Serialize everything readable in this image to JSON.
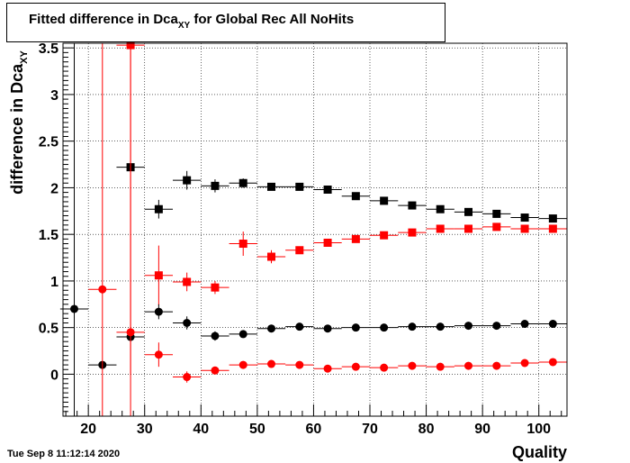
{
  "header": {
    "title_prefix": "Fitted difference in Dca",
    "title_sub": "XY",
    "title_suffix": " for Global Rec All NoHits"
  },
  "footer": {
    "timestamp": "Tue Sep  8 11:12:14 2020"
  },
  "chart_data": {
    "type": "scatter",
    "title": "Fitted difference in Dca_XY for Global Rec All NoHits",
    "xlabel": "Quality",
    "ylabel_main": "difference in Dca",
    "ylabel_sub": "XY",
    "xlim": [
      15.5,
      105
    ],
    "ylim": [
      -0.45,
      3.55
    ],
    "x_ticks": [
      20,
      30,
      40,
      50,
      60,
      70,
      80,
      90,
      100
    ],
    "y_ticks": [
      0,
      0.5,
      1,
      1.5,
      2,
      2.5,
      3,
      3.5
    ],
    "x_tick_labels": [
      "20",
      "30",
      "40",
      "50",
      "60",
      "70",
      "80",
      "90",
      "100"
    ],
    "y_tick_labels": [
      "0",
      "0.5",
      "1",
      "1.5",
      "2",
      "2.5",
      "3",
      "3.5"
    ],
    "grid": true,
    "x_half_width": 2.5,
    "series": [
      {
        "marker": "square",
        "color": "#000000",
        "points": [
          {
            "x": 27.5,
            "y": 2.22,
            "err": 0.04
          },
          {
            "x": 32.5,
            "y": 1.77,
            "err": 0.1
          },
          {
            "x": 37.5,
            "y": 2.08,
            "err": 0.1
          },
          {
            "x": 42.5,
            "y": 2.02,
            "err": 0.07
          },
          {
            "x": 47.5,
            "y": 2.05,
            "err": 0.05
          },
          {
            "x": 52.5,
            "y": 2.01,
            "err": 0.03
          },
          {
            "x": 57.5,
            "y": 2.01,
            "err": 0.03
          },
          {
            "x": 62.5,
            "y": 1.98,
            "err": 0.03
          },
          {
            "x": 67.5,
            "y": 1.91,
            "err": 0.03
          },
          {
            "x": 72.5,
            "y": 1.86,
            "err": 0.02
          },
          {
            "x": 77.5,
            "y": 1.81,
            "err": 0.02
          },
          {
            "x": 82.5,
            "y": 1.77,
            "err": 0.02
          },
          {
            "x": 87.5,
            "y": 1.74,
            "err": 0.02
          },
          {
            "x": 92.5,
            "y": 1.72,
            "err": 0.02
          },
          {
            "x": 97.5,
            "y": 1.68,
            "err": 0.02
          },
          {
            "x": 102.5,
            "y": 1.67,
            "err": 0.02
          }
        ]
      },
      {
        "marker": "square",
        "color": "#ff0000",
        "points": [
          {
            "x": 27.5,
            "y": 3.53,
            "err": 3.53
          },
          {
            "x": 32.5,
            "y": 1.06,
            "err": 0.32
          },
          {
            "x": 37.5,
            "y": 0.99,
            "err": 0.1
          },
          {
            "x": 42.5,
            "y": 0.93,
            "err": 0.07
          },
          {
            "x": 47.5,
            "y": 1.4,
            "err": 0.13
          },
          {
            "x": 52.5,
            "y": 1.26,
            "err": 0.07
          },
          {
            "x": 57.5,
            "y": 1.33,
            "err": 0.04
          },
          {
            "x": 62.5,
            "y": 1.41,
            "err": 0.03
          },
          {
            "x": 67.5,
            "y": 1.45,
            "err": 0.03
          },
          {
            "x": 72.5,
            "y": 1.49,
            "err": 0.02
          },
          {
            "x": 77.5,
            "y": 1.52,
            "err": 0.02
          },
          {
            "x": 82.5,
            "y": 1.56,
            "err": 0.02
          },
          {
            "x": 87.5,
            "y": 1.56,
            "err": 0.02
          },
          {
            "x": 92.5,
            "y": 1.58,
            "err": 0.02
          },
          {
            "x": 97.5,
            "y": 1.56,
            "err": 0.02
          },
          {
            "x": 102.5,
            "y": 1.56,
            "err": 0.02
          }
        ]
      },
      {
        "marker": "circle",
        "color": "#000000",
        "points": [
          {
            "x": 17.5,
            "y": 0.7,
            "err": 3.6
          },
          {
            "x": 22.5,
            "y": 0.1,
            "err": 0.02
          },
          {
            "x": 27.5,
            "y": 0.4,
            "err": 0.03
          },
          {
            "x": 32.5,
            "y": 0.67,
            "err": 0.08
          },
          {
            "x": 37.5,
            "y": 0.55,
            "err": 0.07
          },
          {
            "x": 42.5,
            "y": 0.41,
            "err": 0.05
          },
          {
            "x": 47.5,
            "y": 0.43,
            "err": 0.03
          },
          {
            "x": 52.5,
            "y": 0.49,
            "err": 0.02
          },
          {
            "x": 57.5,
            "y": 0.51,
            "err": 0.02
          },
          {
            "x": 62.5,
            "y": 0.49,
            "err": 0.02
          },
          {
            "x": 67.5,
            "y": 0.5,
            "err": 0.02
          },
          {
            "x": 72.5,
            "y": 0.5,
            "err": 0.02
          },
          {
            "x": 77.5,
            "y": 0.51,
            "err": 0.02
          },
          {
            "x": 82.5,
            "y": 0.51,
            "err": 0.02
          },
          {
            "x": 87.5,
            "y": 0.52,
            "err": 0.02
          },
          {
            "x": 92.5,
            "y": 0.52,
            "err": 0.02
          },
          {
            "x": 97.5,
            "y": 0.54,
            "err": 0.02
          },
          {
            "x": 102.5,
            "y": 0.54,
            "err": 0.02
          }
        ]
      },
      {
        "marker": "circle",
        "color": "#ff0000",
        "points": [
          {
            "x": 22.5,
            "y": 0.91,
            "err": 3.6
          },
          {
            "x": 27.5,
            "y": 0.45,
            "err": 3.6
          },
          {
            "x": 32.5,
            "y": 0.21,
            "err": 0.13
          },
          {
            "x": 37.5,
            "y": -0.03,
            "err": 0.06
          },
          {
            "x": 42.5,
            "y": 0.04,
            "err": 0.04
          },
          {
            "x": 47.5,
            "y": 0.1,
            "err": 0.03
          },
          {
            "x": 52.5,
            "y": 0.11,
            "err": 0.02
          },
          {
            "x": 57.5,
            "y": 0.1,
            "err": 0.02
          },
          {
            "x": 62.5,
            "y": 0.06,
            "err": 0.02
          },
          {
            "x": 67.5,
            "y": 0.08,
            "err": 0.02
          },
          {
            "x": 72.5,
            "y": 0.07,
            "err": 0.02
          },
          {
            "x": 77.5,
            "y": 0.09,
            "err": 0.02
          },
          {
            "x": 82.5,
            "y": 0.08,
            "err": 0.02
          },
          {
            "x": 87.5,
            "y": 0.09,
            "err": 0.02
          },
          {
            "x": 92.5,
            "y": 0.09,
            "err": 0.02
          },
          {
            "x": 97.5,
            "y": 0.12,
            "err": 0.02
          },
          {
            "x": 102.5,
            "y": 0.13,
            "err": 0.02
          }
        ]
      }
    ]
  }
}
